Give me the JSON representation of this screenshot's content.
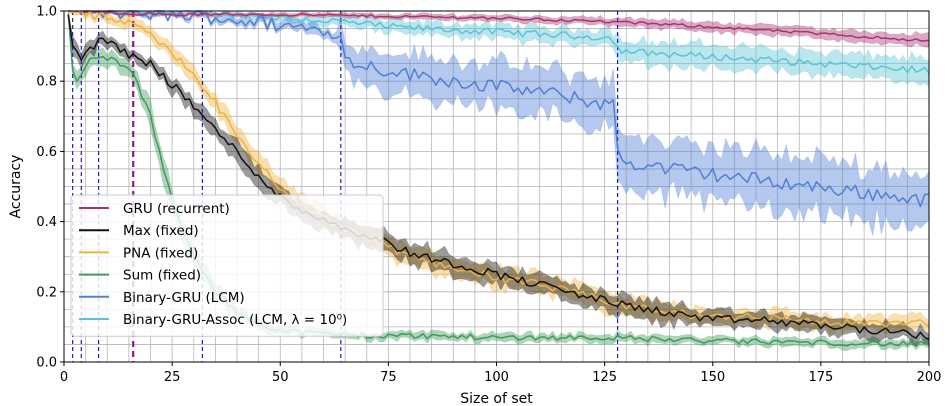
{
  "chart_data": {
    "type": "line",
    "xlabel": "Size of set",
    "ylabel": "Accuracy",
    "xlim": [
      0,
      200
    ],
    "ylim": [
      0.0,
      1.0
    ],
    "xticks": [
      0,
      25,
      50,
      75,
      100,
      125,
      150,
      175,
      200
    ],
    "yticks": [
      0.0,
      0.2,
      0.4,
      0.6,
      0.8,
      1.0
    ],
    "xtick_labels": [
      "0",
      "25",
      "50",
      "75",
      "100",
      "125",
      "150",
      "175",
      "200"
    ],
    "ytick_labels": [
      "0.0",
      "0.2",
      "0.4",
      "0.6",
      "0.8",
      "1.0"
    ],
    "grid": true,
    "minor_grid_step_x": 5,
    "minor_grid_step_y": 0.05,
    "legend_position": "lower-left",
    "vlines": [
      {
        "x": 2,
        "color": "#1a1acc",
        "style": "dashed"
      },
      {
        "x": 4,
        "color": "#1a1acc",
        "style": "dashed"
      },
      {
        "x": 8,
        "color": "#1a1acc",
        "style": "dashed"
      },
      {
        "x": 16,
        "color": "#8b1a8b",
        "style": "dashed-thick"
      },
      {
        "x": 32,
        "color": "#1a1acc",
        "style": "dashed"
      },
      {
        "x": 64,
        "color": "#1a1acc",
        "style": "dashed"
      },
      {
        "x": 128,
        "color": "#1a1acc",
        "style": "dashed"
      }
    ],
    "series": [
      {
        "name": "GRU (recurrent)",
        "color": "#a8336f",
        "x": [
          1,
          10,
          25,
          50,
          75,
          100,
          125,
          150,
          175,
          200
        ],
        "y": [
          1.0,
          0.995,
          0.99,
          0.99,
          0.985,
          0.98,
          0.97,
          0.955,
          0.935,
          0.915
        ],
        "band": [
          0.003,
          0.004,
          0.005,
          0.005,
          0.006,
          0.008,
          0.01,
          0.012,
          0.014,
          0.015
        ]
      },
      {
        "name": "Max (fixed)",
        "color": "#111111",
        "x": [
          1,
          2,
          4,
          8,
          12,
          16,
          20,
          25,
          30,
          35,
          40,
          45,
          50,
          55,
          60,
          65,
          70,
          75,
          80,
          90,
          100,
          110,
          120,
          130,
          140,
          150,
          160,
          170,
          180,
          190,
          200
        ],
        "y": [
          0.99,
          0.9,
          0.87,
          0.915,
          0.9,
          0.87,
          0.85,
          0.79,
          0.73,
          0.66,
          0.6,
          0.53,
          0.47,
          0.43,
          0.41,
          0.38,
          0.36,
          0.34,
          0.31,
          0.28,
          0.25,
          0.22,
          0.19,
          0.16,
          0.14,
          0.12,
          0.12,
          0.11,
          0.1,
          0.085,
          0.075
        ],
        "band": [
          0.005,
          0.02,
          0.02,
          0.015,
          0.015,
          0.015,
          0.015,
          0.02,
          0.02,
          0.025,
          0.025,
          0.025,
          0.025,
          0.025,
          0.025,
          0.025,
          0.025,
          0.025,
          0.025,
          0.025,
          0.025,
          0.025,
          0.025,
          0.025,
          0.025,
          0.02,
          0.02,
          0.02,
          0.02,
          0.02,
          0.015
        ]
      },
      {
        "name": "PNA (fixed)",
        "color": "#f0b23c",
        "x": [
          1,
          5,
          10,
          16,
          20,
          25,
          30,
          35,
          40,
          45,
          50,
          55,
          60,
          65,
          70,
          75,
          80,
          90,
          100,
          110,
          120,
          130,
          140,
          150,
          160,
          170,
          180,
          190,
          200
        ],
        "y": [
          1.0,
          0.99,
          0.98,
          0.96,
          0.93,
          0.88,
          0.82,
          0.74,
          0.64,
          0.56,
          0.5,
          0.44,
          0.41,
          0.38,
          0.36,
          0.33,
          0.3,
          0.27,
          0.24,
          0.22,
          0.19,
          0.16,
          0.14,
          0.13,
          0.13,
          0.12,
          0.11,
          0.11,
          0.11
        ],
        "band": [
          0.004,
          0.01,
          0.012,
          0.015,
          0.015,
          0.02,
          0.02,
          0.02,
          0.025,
          0.025,
          0.025,
          0.025,
          0.025,
          0.025,
          0.025,
          0.025,
          0.025,
          0.025,
          0.025,
          0.025,
          0.025,
          0.025,
          0.025,
          0.02,
          0.02,
          0.02,
          0.02,
          0.02,
          0.02
        ]
      },
      {
        "name": "Sum (fixed)",
        "color": "#3f9a5b",
        "x": [
          1,
          2,
          3,
          6,
          9,
          12,
          16,
          20,
          23,
          26,
          30,
          35,
          40,
          45,
          50,
          60,
          70,
          80,
          100,
          125,
          150,
          175,
          200
        ],
        "y": [
          0.99,
          0.83,
          0.8,
          0.86,
          0.87,
          0.86,
          0.82,
          0.7,
          0.55,
          0.42,
          0.3,
          0.2,
          0.14,
          0.11,
          0.09,
          0.08,
          0.075,
          0.075,
          0.07,
          0.07,
          0.06,
          0.055,
          0.05
        ],
        "band": [
          0.005,
          0.025,
          0.02,
          0.02,
          0.02,
          0.02,
          0.02,
          0.03,
          0.03,
          0.03,
          0.03,
          0.02,
          0.015,
          0.012,
          0.01,
          0.01,
          0.01,
          0.01,
          0.01,
          0.01,
          0.01,
          0.01,
          0.01
        ]
      },
      {
        "name": "Binary-GRU (LCM)",
        "color": "#4f7fd6",
        "x": [
          1,
          16,
          32,
          50,
          63,
          64,
          65,
          75,
          90,
          110,
          127,
          128,
          129,
          140,
          160,
          180,
          200
        ],
        "y": [
          1.0,
          0.995,
          0.985,
          0.96,
          0.94,
          0.92,
          0.86,
          0.83,
          0.8,
          0.77,
          0.73,
          0.62,
          0.57,
          0.55,
          0.52,
          0.49,
          0.46
        ],
        "band": [
          0.003,
          0.005,
          0.008,
          0.012,
          0.015,
          0.04,
          0.04,
          0.05,
          0.055,
          0.06,
          0.065,
          0.065,
          0.065,
          0.07,
          0.07,
          0.07,
          0.07
        ]
      },
      {
        "name": "Binary-GRU-Assoc (LCM, λ = 10⁰)",
        "color": "#5bc3d6",
        "x": [
          1,
          32,
          64,
          75,
          100,
          125,
          127,
          128,
          129,
          150,
          175,
          200
        ],
        "y": [
          1.0,
          0.995,
          0.97,
          0.955,
          0.94,
          0.925,
          0.92,
          0.895,
          0.885,
          0.87,
          0.85,
          0.83
        ],
        "band": [
          0.003,
          0.005,
          0.012,
          0.015,
          0.018,
          0.02,
          0.02,
          0.03,
          0.03,
          0.03,
          0.03,
          0.03
        ]
      }
    ]
  }
}
